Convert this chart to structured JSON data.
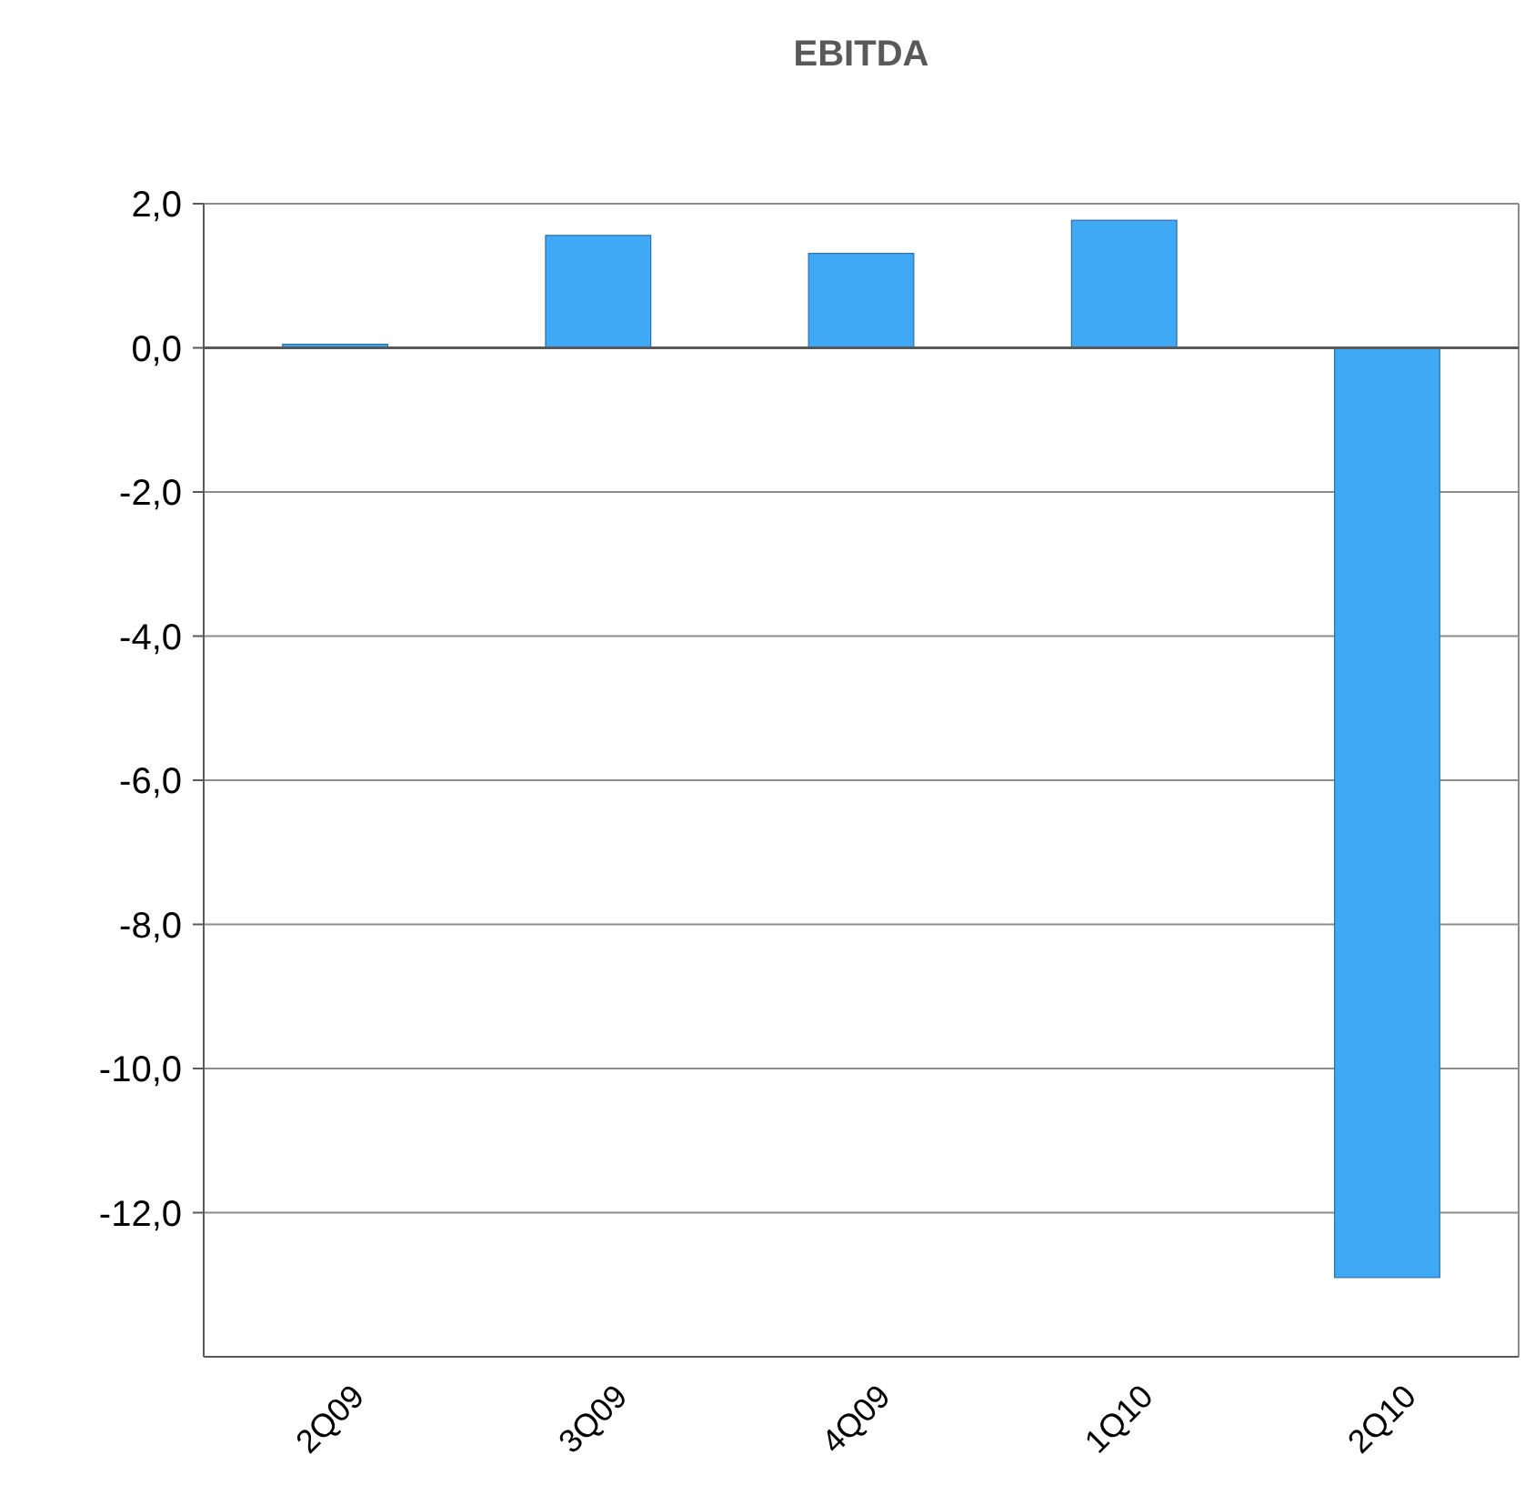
{
  "chart_data": {
    "type": "bar",
    "title": "EBITDA",
    "categories": [
      "2Q09",
      "3Q09",
      "4Q09",
      "1Q10",
      "2Q10"
    ],
    "values": [
      0.05,
      1.56,
      1.31,
      1.77,
      -12.9
    ],
    "color": "#3fa9f5",
    "ylim": [
      -14,
      2
    ],
    "yticks": [
      {
        "value": 2,
        "label": "2,0"
      },
      {
        "value": 0,
        "label": "0,0"
      },
      {
        "value": -2,
        "label": "-2,0"
      },
      {
        "value": -4,
        "label": "-4,0"
      },
      {
        "value": -6,
        "label": "-6,0"
      },
      {
        "value": -8,
        "label": "-8,0"
      },
      {
        "value": -10,
        "label": "-10,0"
      },
      {
        "value": -12,
        "label": "-12,0"
      }
    ],
    "grid": "y"
  }
}
